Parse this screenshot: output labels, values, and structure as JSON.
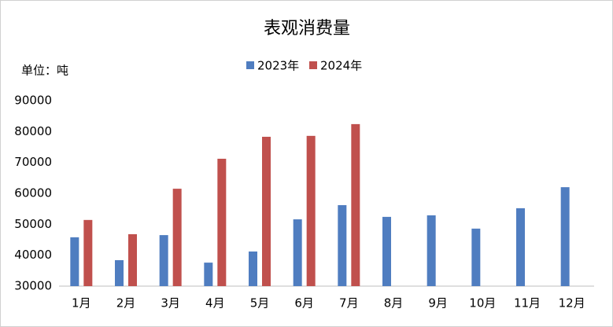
{
  "chart_data": {
    "type": "bar",
    "title": "表观消费量",
    "unit_label": "单位：吨",
    "categories": [
      "1月",
      "2月",
      "3月",
      "4月",
      "5月",
      "6月",
      "7月",
      "8月",
      "9月",
      "10月",
      "11月",
      "12月"
    ],
    "series": [
      {
        "name": "2023年",
        "color": "#4f7dc0",
        "values": [
          45800,
          38400,
          46500,
          37600,
          41200,
          51600,
          56200,
          52400,
          52900,
          48600,
          55200,
          62000
        ]
      },
      {
        "name": "2024年",
        "color": "#c0504d",
        "values": [
          51400,
          46800,
          61500,
          71200,
          78300,
          78600,
          82400,
          null,
          null,
          null,
          null,
          null
        ]
      }
    ],
    "ylim": [
      30000,
      90000
    ],
    "yticks": [
      30000,
      40000,
      50000,
      60000,
      70000,
      80000,
      90000
    ],
    "legend": "top"
  }
}
